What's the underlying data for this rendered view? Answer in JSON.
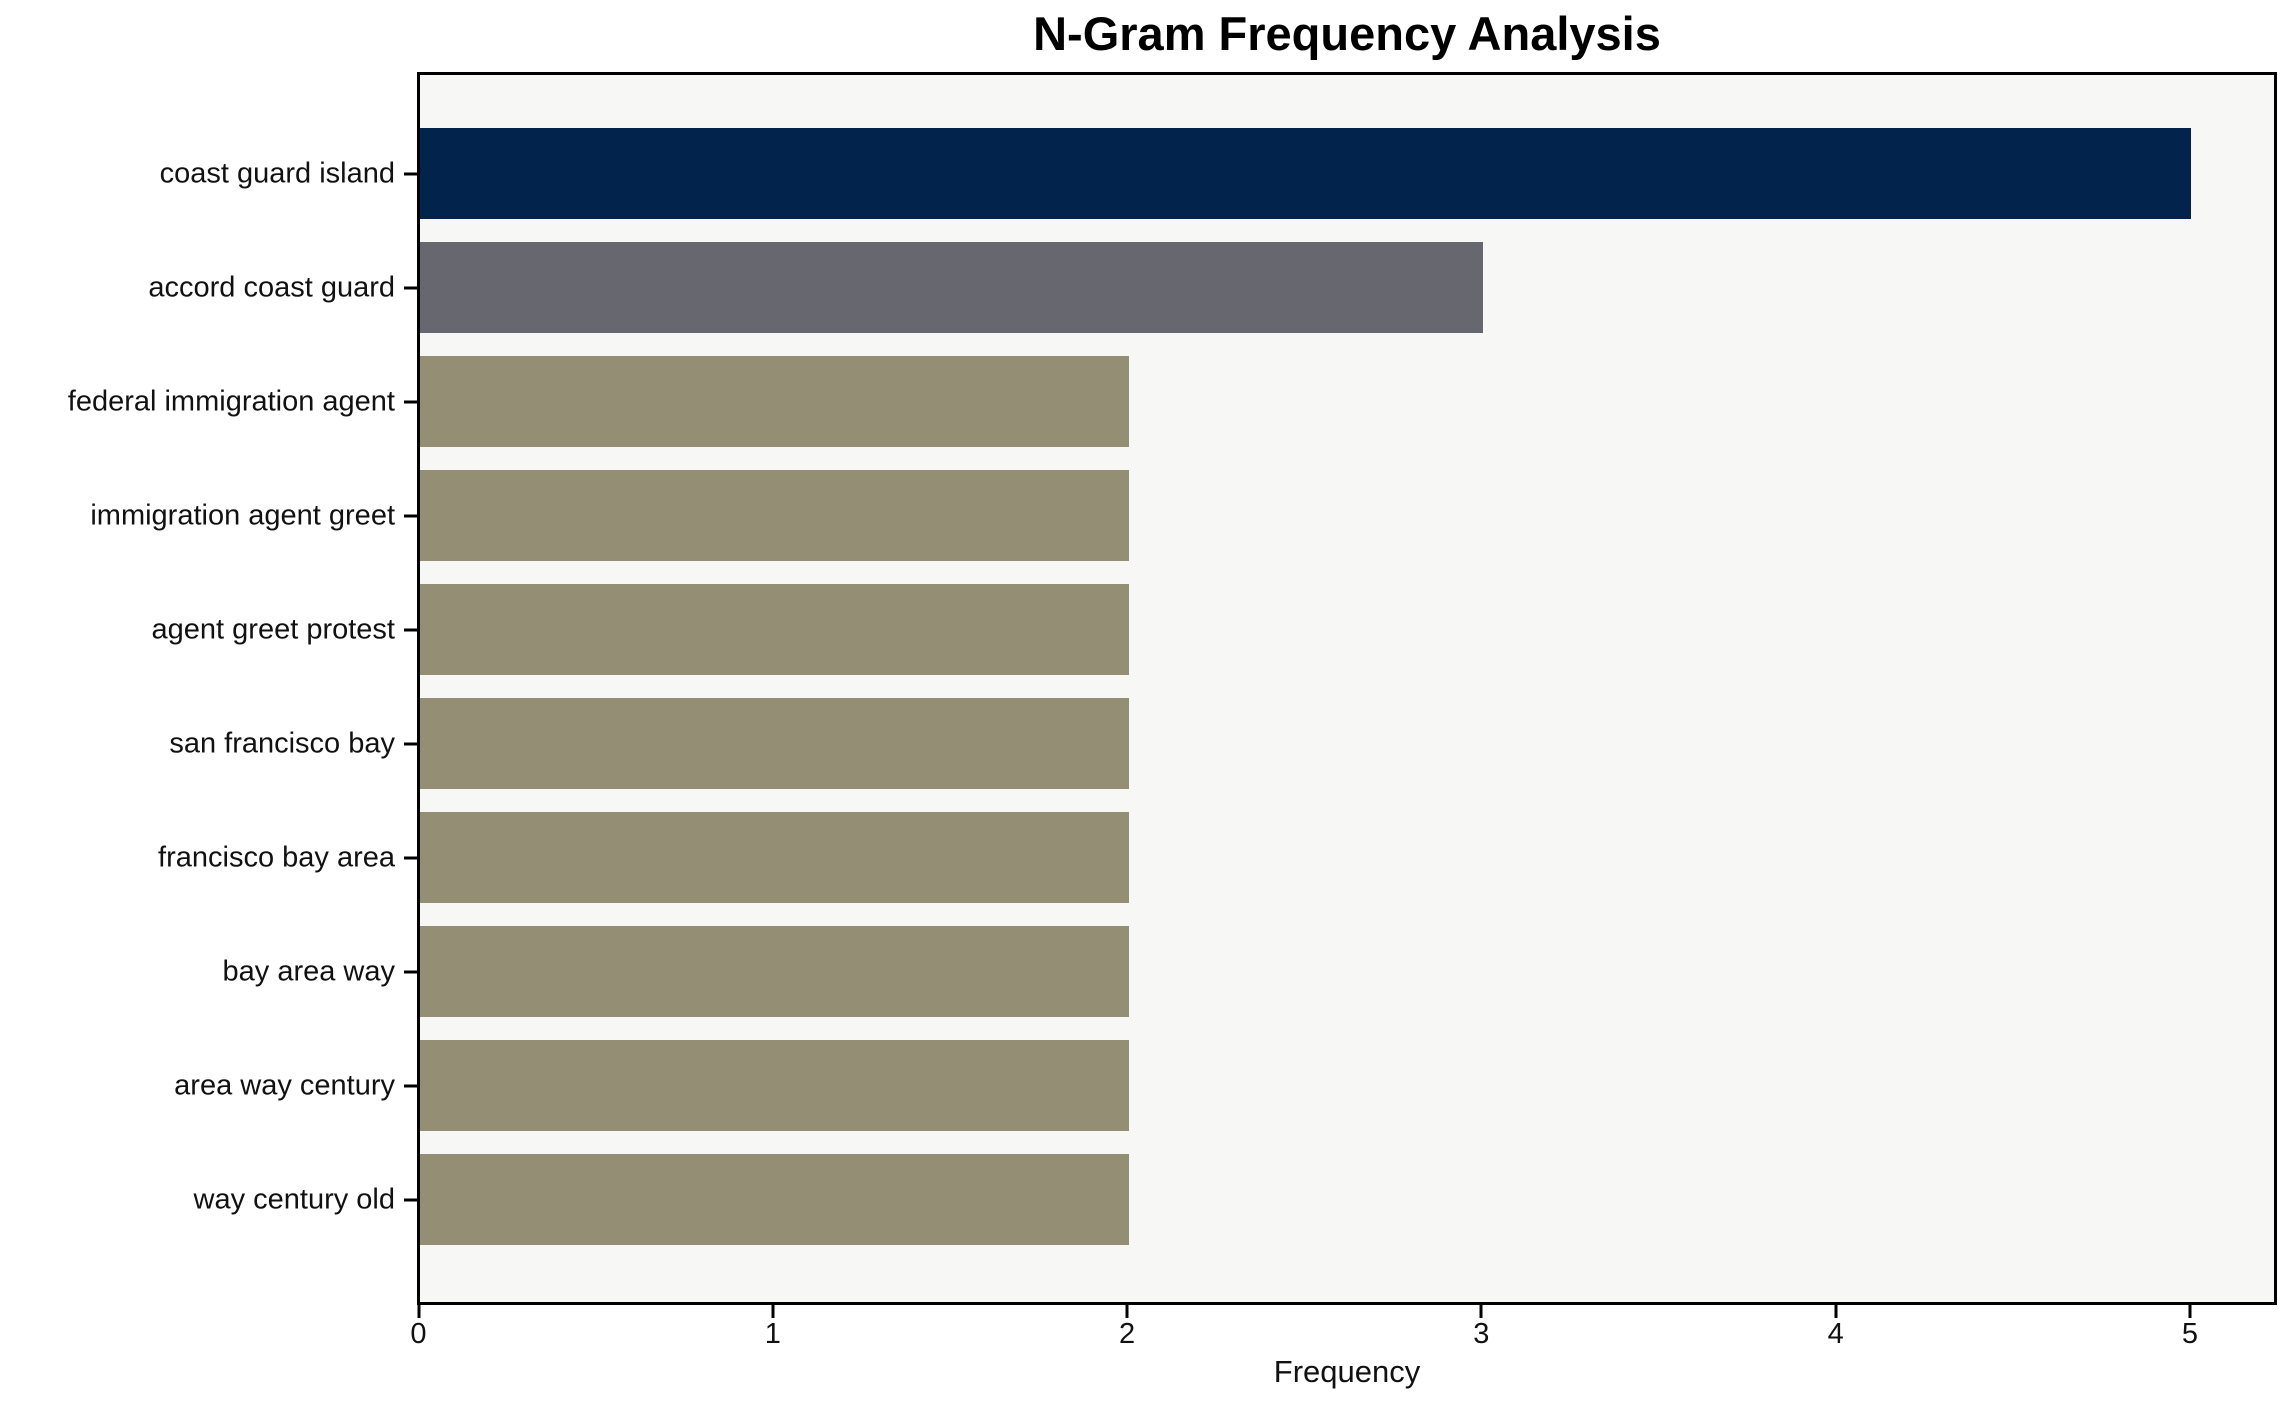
{
  "chart_data": {
    "type": "bar",
    "orientation": "horizontal",
    "title": "N-Gram Frequency Analysis",
    "xlabel": "Frequency",
    "ylabel": "",
    "categories": [
      "coast guard island",
      "accord coast guard",
      "federal immigration agent",
      "immigration agent greet",
      "agent greet protest",
      "san francisco bay",
      "francisco bay area",
      "bay area way",
      "area way century",
      "way century old"
    ],
    "values": [
      5,
      3,
      2,
      2,
      2,
      2,
      2,
      2,
      2,
      2
    ],
    "bar_colors": [
      "#02234c",
      "#66676f",
      "#948e74",
      "#948e74",
      "#948e74",
      "#948e74",
      "#948e74",
      "#948e74",
      "#948e74",
      "#948e74"
    ],
    "xlim": [
      0,
      5.25
    ],
    "xticks": [
      0,
      1,
      2,
      3,
      4,
      5
    ],
    "grid": false,
    "legend": null,
    "plot_background": "#f7f7f5",
    "figure_background": "#ffffff",
    "spine_color": "#000000"
  }
}
